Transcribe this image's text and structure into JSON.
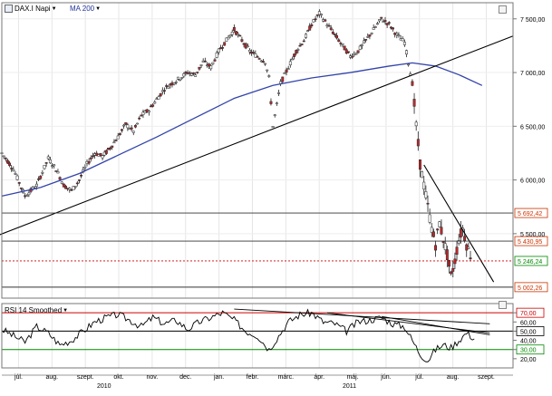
{
  "panel": {
    "symbol_label": "DAX.I Napi",
    "indicator_label": "MA 200",
    "symbol_icon": "chart-type-icon",
    "dropdown_icon": "chevron-down-icon"
  },
  "rsi_panel": {
    "label": "RSI 14 Smoothed",
    "dropdown_icon": "chevron-down-icon"
  },
  "chart_data": [
    {
      "type": "candlestick",
      "x_months": [
        "júl.",
        "aug.",
        "szept.",
        "okt.",
        "nov.",
        "dec.",
        "jan.",
        "febr.",
        "márc.",
        "ápr.",
        "máj.",
        "jún.",
        "júl.",
        "aug.",
        "szept."
      ],
      "x_years": [
        "2010",
        "2011"
      ],
      "y_ticks": [
        "7 500,00",
        "7 000,00",
        "6 500,00",
        "6 000,00",
        "5 500,00"
      ],
      "ylim": [
        4900,
        7650
      ],
      "price_path": [
        [
          0,
          6250
        ],
        [
          3,
          6100
        ],
        [
          6,
          5850
        ],
        [
          9,
          5950
        ],
        [
          12,
          6200
        ],
        [
          14,
          6100
        ],
        [
          16,
          5950
        ],
        [
          18,
          5900
        ],
        [
          20,
          6000
        ],
        [
          22,
          6150
        ],
        [
          24,
          6250
        ],
        [
          26,
          6220
        ],
        [
          28,
          6300
        ],
        [
          30,
          6400
        ],
        [
          32,
          6520
        ],
        [
          34,
          6450
        ],
        [
          36,
          6600
        ],
        [
          38,
          6650
        ],
        [
          40,
          6750
        ],
        [
          42,
          6850
        ],
        [
          44,
          6900
        ],
        [
          46,
          6950
        ],
        [
          48,
          7000
        ],
        [
          50,
          6980
        ],
        [
          52,
          7100
        ],
        [
          54,
          7050
        ],
        [
          56,
          7200
        ],
        [
          58,
          7300
        ],
        [
          60,
          7400
        ],
        [
          62,
          7300
        ],
        [
          64,
          7200
        ],
        [
          66,
          7150
        ],
        [
          68,
          7100
        ],
        [
          69,
          6950
        ],
        [
          70,
          6500
        ],
        [
          71,
          6700
        ],
        [
          72,
          6900
        ],
        [
          74,
          7050
        ],
        [
          76,
          7200
        ],
        [
          78,
          7300
        ],
        [
          80,
          7450
        ],
        [
          82,
          7550
        ],
        [
          84,
          7450
        ],
        [
          86,
          7350
        ],
        [
          88,
          7250
        ],
        [
          90,
          7150
        ],
        [
          92,
          7200
        ],
        [
          94,
          7300
        ],
        [
          96,
          7400
        ],
        [
          98,
          7500
        ],
        [
          100,
          7450
        ],
        [
          102,
          7350
        ],
        [
          104,
          7280
        ],
        [
          106,
          6900
        ],
        [
          107,
          6500
        ],
        [
          108,
          6150
        ],
        [
          109,
          5950
        ],
        [
          110,
          5750
        ],
        [
          111,
          5550
        ],
        [
          112,
          5400
        ],
        [
          113,
          5600
        ],
        [
          114,
          5450
        ],
        [
          115,
          5300
        ],
        [
          116,
          5100
        ],
        [
          117,
          5250
        ],
        [
          118,
          5450
        ],
        [
          119,
          5550
        ],
        [
          120,
          5400
        ],
        [
          121,
          5300
        ]
      ],
      "series": [
        {
          "name": "MA 200",
          "color": "#3344aa",
          "values": [
            [
              0,
              5850
            ],
            [
              10,
              5930
            ],
            [
              20,
              6060
            ],
            [
              30,
              6230
            ],
            [
              40,
              6400
            ],
            [
              50,
              6580
            ],
            [
              60,
              6760
            ],
            [
              70,
              6880
            ],
            [
              80,
              6950
            ],
            [
              90,
              7000
            ],
            [
              100,
              7060
            ],
            [
              106,
              7090
            ],
            [
              112,
              7060
            ],
            [
              118,
              6980
            ],
            [
              124,
              6880
            ]
          ]
        }
      ],
      "trendlines": [
        {
          "from": [
            -2,
            5470
          ],
          "to": [
            132,
            7340
          ],
          "color": "#000000"
        },
        {
          "from": [
            109,
            6140
          ],
          "to": [
            127,
            5050
          ],
          "color": "#000000"
        }
      ],
      "horizontal_levels": [
        {
          "value": 5692.42,
          "label": "5 692,42",
          "color": "#cc3300",
          "style": "solid-black"
        },
        {
          "value": 5430.95,
          "label": "5 430,95",
          "color": "#cc3300",
          "style": "solid-black"
        },
        {
          "value": 5246.24,
          "label": "5 246,24",
          "color": "#008800",
          "style": "dotted-red"
        },
        {
          "value": 5002.26,
          "label": "5 002,26",
          "color": "#cc3300",
          "style": "solid-black"
        }
      ]
    },
    {
      "type": "line",
      "name": "RSI 14 Smoothed",
      "ylim": [
        10,
        80
      ],
      "y_ticks": [
        "70,00",
        "60,00",
        "50,00",
        "40,00",
        "30,00",
        "20,00"
      ],
      "levels": [
        {
          "value": 70,
          "color": "#cc0000"
        },
        {
          "value": 50,
          "color": "#000000"
        },
        {
          "value": 30,
          "color": "#008800"
        }
      ],
      "rsi_path": [
        [
          0,
          52
        ],
        [
          3,
          45
        ],
        [
          6,
          38
        ],
        [
          9,
          55
        ],
        [
          12,
          48
        ],
        [
          15,
          35
        ],
        [
          18,
          40
        ],
        [
          21,
          50
        ],
        [
          24,
          60
        ],
        [
          27,
          65
        ],
        [
          30,
          68
        ],
        [
          33,
          62
        ],
        [
          36,
          55
        ],
        [
          39,
          65
        ],
        [
          42,
          58
        ],
        [
          45,
          62
        ],
        [
          48,
          52
        ],
        [
          51,
          60
        ],
        [
          54,
          65
        ],
        [
          57,
          70
        ],
        [
          60,
          62
        ],
        [
          63,
          50
        ],
        [
          66,
          45
        ],
        [
          69,
          30
        ],
        [
          71,
          42
        ],
        [
          74,
          60
        ],
        [
          77,
          68
        ],
        [
          80,
          70
        ],
        [
          83,
          60
        ],
        [
          86,
          58
        ],
        [
          89,
          50
        ],
        [
          92,
          60
        ],
        [
          95,
          62
        ],
        [
          98,
          65
        ],
        [
          101,
          58
        ],
        [
          104,
          55
        ],
        [
          106,
          40
        ],
        [
          108,
          25
        ],
        [
          110,
          18
        ],
        [
          112,
          30
        ],
        [
          114,
          35
        ],
        [
          116,
          32
        ],
        [
          118,
          40
        ],
        [
          120,
          48
        ],
        [
          122,
          42
        ]
      ],
      "trendlines": [
        {
          "from": [
            60,
            74
          ],
          "to": [
            126,
            58
          ]
        },
        {
          "from": [
            98,
            66
          ],
          "to": [
            126,
            46
          ]
        },
        {
          "from": [
            84,
            70
          ],
          "to": [
            126,
            48
          ]
        }
      ]
    }
  ]
}
